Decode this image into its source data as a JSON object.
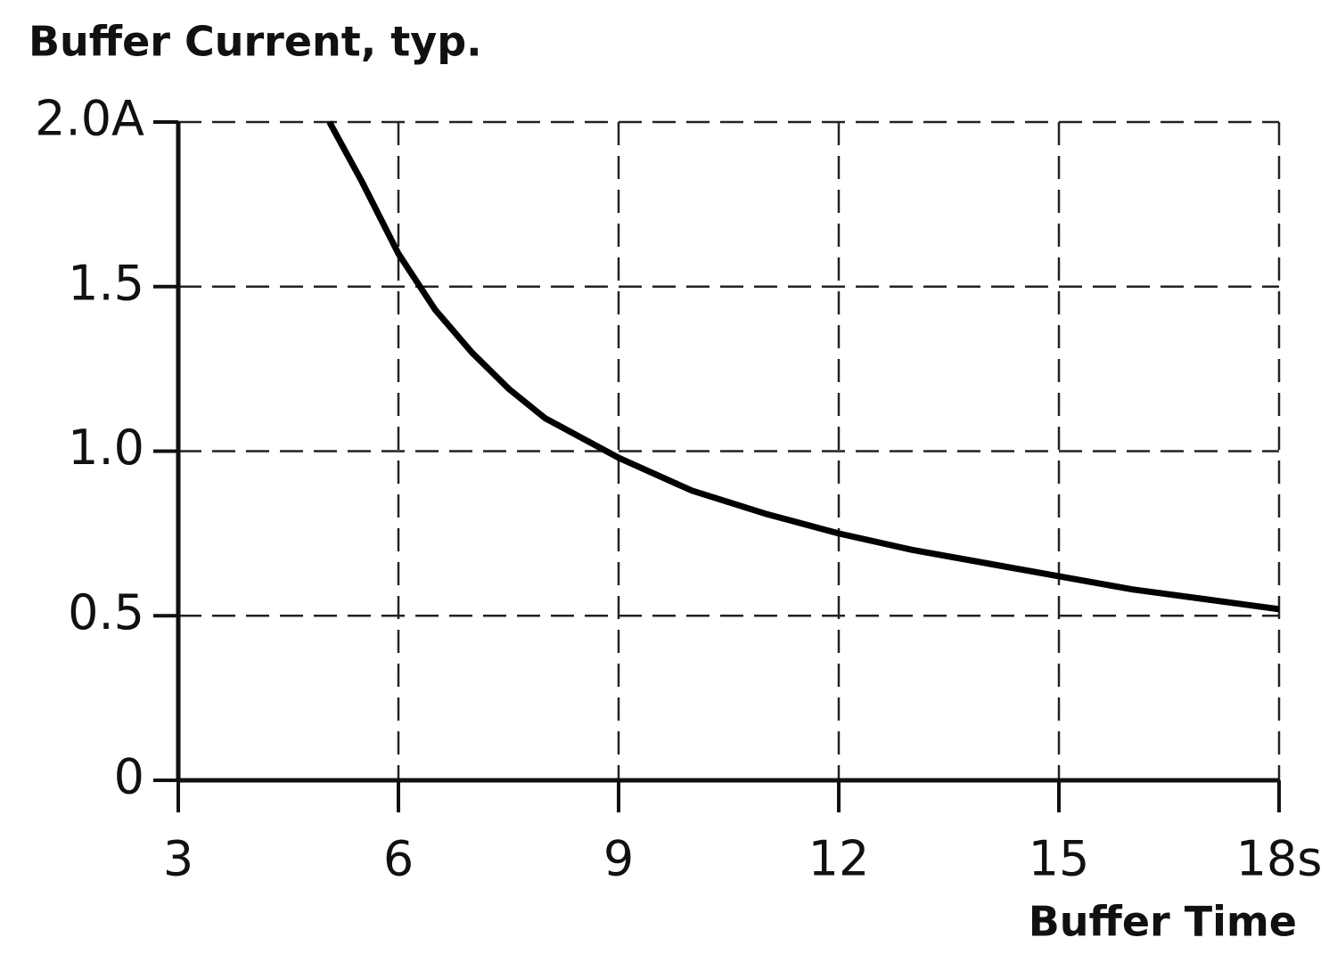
{
  "chart_data": {
    "type": "line",
    "title": "Buffer Current, typ.",
    "x_label": "Buffer Time",
    "x": [
      5.06,
      5.5,
      6,
      6.5,
      7,
      7.5,
      8,
      9,
      10,
      11,
      12,
      13,
      14,
      15,
      16,
      17,
      18
    ],
    "series": [
      {
        "color": "#000000",
        "values": [
          2.0,
          1.82,
          1.6,
          1.43,
          1.3,
          1.19,
          1.1,
          0.98,
          0.88,
          0.81,
          0.75,
          0.7,
          0.66,
          0.62,
          0.58,
          0.55,
          0.52
        ]
      }
    ],
    "xlim": [
      3,
      18
    ],
    "xticks": [
      3,
      6,
      9,
      12,
      15,
      {
        "value": 18,
        "label": "18s"
      }
    ],
    "ylim": [
      0,
      2
    ],
    "yticks": [
      0,
      0.5,
      {
        "value": 1,
        "label": "1.0"
      },
      1.5,
      {
        "value": 2,
        "label": "2.0A"
      }
    ],
    "grid": true
  }
}
